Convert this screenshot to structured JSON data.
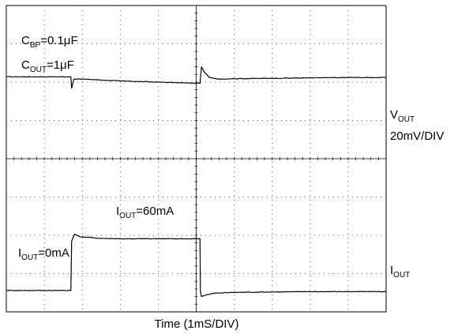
{
  "chart_data": {
    "type": "line",
    "title": "",
    "xlabel": "Time (1mS/DIV)",
    "x_unit_per_div": "1mS/DIV",
    "grid": true,
    "grid_divisions": {
      "x": 10,
      "y": 8
    },
    "annotations": {
      "cbp": {
        "main": "C",
        "sub": "BP",
        "rest": "=0.1μF"
      },
      "cout": {
        "main": "C",
        "sub": "OUT",
        "rest": "=1μF"
      },
      "iout_high": {
        "main": "I",
        "sub": "OUT",
        "rest": "=60mA"
      },
      "iout_low": {
        "main": "I",
        "sub": "OUT",
        "rest": "=0mA"
      }
    },
    "series": [
      {
        "name_main": "V",
        "name_sub": "OUT",
        "scale": "20mV/DIV",
        "x_div": [
          0,
          1.7,
          1.72,
          1.78,
          2.0,
          3.0,
          4.0,
          5.0,
          5.1,
          5.14,
          5.2,
          5.35,
          5.6,
          6.0,
          7.0,
          8.0,
          9.0,
          10.0
        ],
        "y_div": [
          2.14,
          2.14,
          1.84,
          2.08,
          2.08,
          2.03,
          2.0,
          1.97,
          1.97,
          2.4,
          2.28,
          2.12,
          2.08,
          2.09,
          2.1,
          2.11,
          2.12,
          2.12
        ]
      },
      {
        "name_main": "I",
        "name_sub": "OUT",
        "x_div": [
          0,
          1.7,
          1.72,
          1.8,
          1.95,
          2.5,
          3.0,
          4.0,
          5.0,
          5.1,
          5.11,
          5.14,
          5.25,
          5.5,
          6.0,
          7.0,
          8.0,
          10.0
        ],
        "y_div": [
          -3.44,
          -3.44,
          -2.15,
          -1.97,
          -2.04,
          -2.08,
          -2.09,
          -2.09,
          -2.09,
          -2.09,
          -3.46,
          -3.6,
          -3.56,
          -3.51,
          -3.49,
          -3.48,
          -3.47,
          -3.47
        ]
      }
    ]
  }
}
